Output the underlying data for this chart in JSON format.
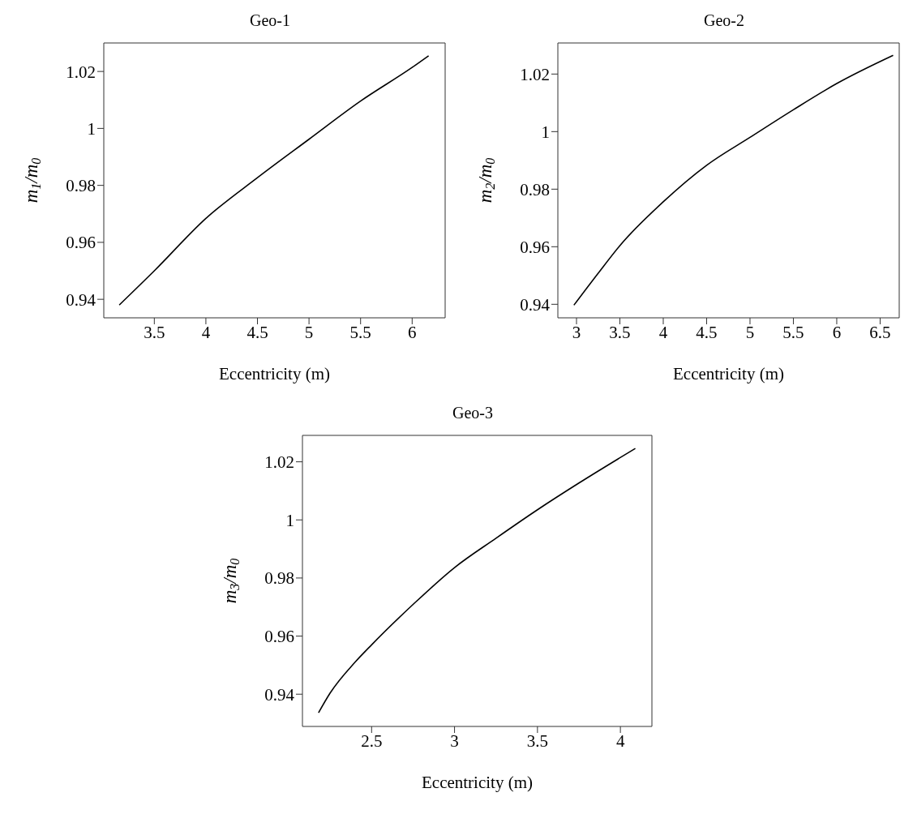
{
  "chart_data": [
    {
      "type": "line",
      "title": "Geo-1",
      "xlabel": "Eccentricity (m)",
      "ylabel": "m$_{1}$/m$_{0}$",
      "xlim": [
        3.01,
        6.32
      ],
      "ylim": [
        0.9335,
        1.03
      ],
      "xticks": [
        {
          "value": 3.5,
          "label": "3.5"
        },
        {
          "value": 4,
          "label": "4"
        },
        {
          "value": 4.5,
          "label": "4.5"
        },
        {
          "value": 5,
          "label": "5"
        },
        {
          "value": 5.5,
          "label": "5.5"
        },
        {
          "value": 6,
          "label": "6"
        }
      ],
      "yticks": [
        {
          "value": 0.94,
          "label": "0.94"
        },
        {
          "value": 0.96,
          "label": "0.96"
        },
        {
          "value": 0.98,
          "label": "0.98"
        },
        {
          "value": 1,
          "label": "1"
        },
        {
          "value": 1.02,
          "label": "1.02"
        }
      ],
      "grid": false,
      "legend": false,
      "series": [
        {
          "color": "#000000",
          "x": [
            3.16,
            3.5,
            4,
            4.5,
            5,
            5.5,
            6,
            6.16
          ],
          "values": [
            0.938,
            0.95,
            0.9684,
            0.9827,
            0.9962,
            1.0096,
            1.0214,
            1.0255
          ]
        }
      ]
    },
    {
      "type": "line",
      "title": "Geo-2",
      "xlabel": "Eccentricity (m)",
      "ylabel": "m$_{2}$/m$_{0}$",
      "xlim": [
        2.785,
        6.72
      ],
      "ylim": [
        0.9353,
        1.0308
      ],
      "xticks": [
        {
          "value": 3,
          "label": "3"
        },
        {
          "value": 3.5,
          "label": "3.5"
        },
        {
          "value": 4,
          "label": "4"
        },
        {
          "value": 4.5,
          "label": "4.5"
        },
        {
          "value": 5,
          "label": "5"
        },
        {
          "value": 5.5,
          "label": "5.5"
        },
        {
          "value": 6,
          "label": "6"
        },
        {
          "value": 6.5,
          "label": "6.5"
        }
      ],
      "yticks": [
        {
          "value": 0.94,
          "label": "0.94"
        },
        {
          "value": 0.96,
          "label": "0.96"
        },
        {
          "value": 0.98,
          "label": "0.98"
        },
        {
          "value": 1,
          "label": "1"
        },
        {
          "value": 1.02,
          "label": "1.02"
        }
      ],
      "grid": false,
      "legend": false,
      "series": [
        {
          "color": "#000000",
          "x": [
            2.97,
            3.25,
            3.5,
            4,
            4.5,
            5,
            5.5,
            6,
            6.65
          ],
          "values": [
            0.9397,
            0.9508,
            0.9604,
            0.9756,
            0.9883,
            0.998,
            1.0076,
            1.0167,
            1.0265
          ]
        }
      ]
    },
    {
      "type": "line",
      "title": "Geo-3",
      "xlabel": "Eccentricity (m)",
      "ylabel": "m$_{3}$/m$_{0}$",
      "xlim": [
        2.083,
        4.19
      ],
      "ylim": [
        0.9289,
        1.0291
      ],
      "xticks": [
        {
          "value": 2.5,
          "label": "2.5"
        },
        {
          "value": 3,
          "label": "3"
        },
        {
          "value": 3.5,
          "label": "3.5"
        },
        {
          "value": 4,
          "label": "4"
        }
      ],
      "yticks": [
        {
          "value": 0.94,
          "label": "0.94"
        },
        {
          "value": 0.96,
          "label": "0.96"
        },
        {
          "value": 0.98,
          "label": "0.98"
        },
        {
          "value": 1,
          "label": "1"
        },
        {
          "value": 1.02,
          "label": "1.02"
        }
      ],
      "grid": false,
      "legend": false,
      "series": [
        {
          "color": "#000000",
          "x": [
            2.18,
            2.25,
            2.4,
            2.5,
            2.75,
            3,
            3.25,
            3.5,
            3.75,
            4.09
          ],
          "values": [
            0.9336,
            0.9404,
            0.951,
            0.957,
            0.9709,
            0.9836,
            0.9937,
            1.0035,
            1.0127,
            1.0246
          ]
        }
      ]
    }
  ]
}
